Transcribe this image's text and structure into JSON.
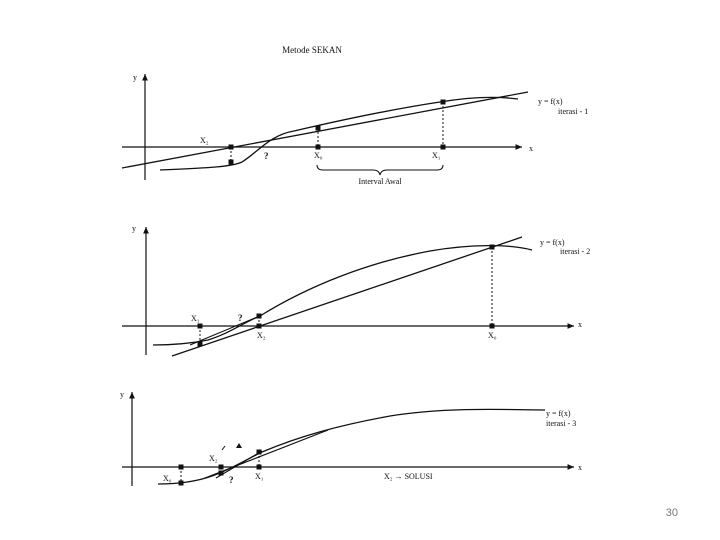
{
  "title": "Metode SEKAN",
  "page_number": "30",
  "panels": [
    {
      "axis_y": "y",
      "axis_x": "x",
      "curve_label": "y = f(x)",
      "iteration_label": "iterasi - 1",
      "point_labels": {
        "x2": "X₂",
        "x0": "X₀",
        "x1": "X₁",
        "root": "?"
      },
      "brace_label": "Interval   Awal"
    },
    {
      "axis_y": "y",
      "axis_x": "x",
      "curve_label": "y = f(x)",
      "iteration_label": "iterasi - 2",
      "point_labels": {
        "x1": "X₁",
        "x2": "X₂",
        "x0": "X₀",
        "root": "?"
      }
    },
    {
      "axis_y": "y",
      "axis_x": "x",
      "curve_label": "y = f(x)",
      "iteration_label": "iterasi - 3",
      "point_labels": {
        "x0": "X₀",
        "x2": "X₂",
        "x1": "X₁",
        "root": "?"
      },
      "solution_label": "X₂ → SOLUSI"
    }
  ]
}
